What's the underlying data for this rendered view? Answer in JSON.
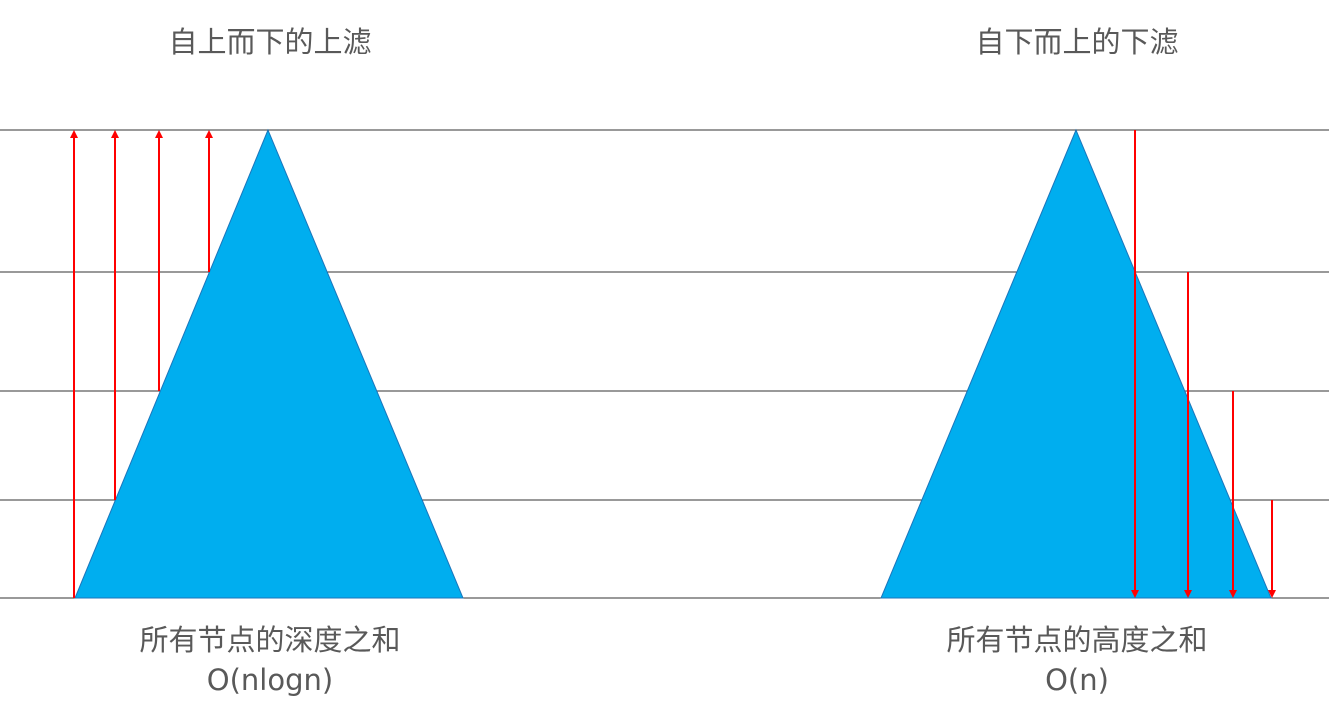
{
  "left_panel": {
    "title": "自上而下的上滤",
    "caption_line1": "所有节点的深度之和",
    "caption_line2": "O(nlogn)"
  },
  "right_panel": {
    "title": "自下而上的下滤",
    "caption_line1": "所有节点的高度之和",
    "caption_line2": "O(n)"
  },
  "colors": {
    "triangle_fill": "#00AEEF",
    "arrow": "#FF0000",
    "level_line": "#333333",
    "text": "#595959"
  }
}
